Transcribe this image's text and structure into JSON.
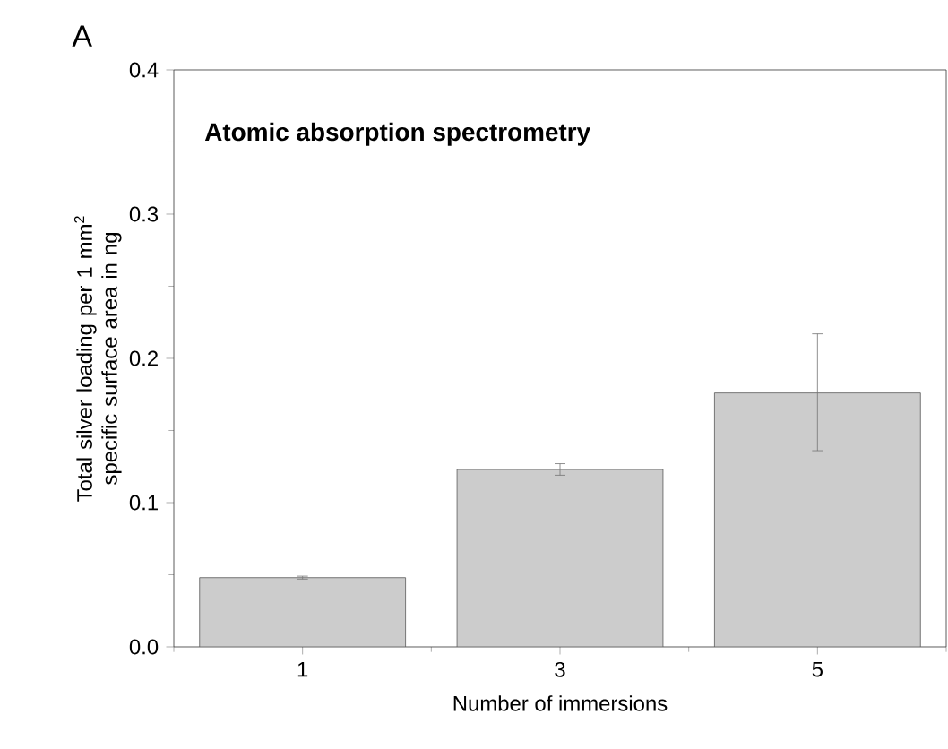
{
  "chart_data": {
    "type": "bar",
    "title": "Atomic absorption spectrometry",
    "annotations": [
      "A"
    ],
    "xlabel": "Number of immersions",
    "ylabel": "Total silver loading per 1 mm$^{2}$ specific surface area in ng",
    "categories": [
      "1",
      "3",
      "5"
    ],
    "values": [
      0.048,
      0.123,
      0.176
    ],
    "errors": [
      0.001,
      0.004,
      [
        0.136,
        0.217
      ]
    ],
    "color": "#cccccc",
    "ylim": [
      0,
      0.4
    ],
    "yticks": [
      {
        "value": 0,
        "label": "0.0"
      },
      0.1,
      0.2,
      0.3,
      0.4
    ]
  }
}
